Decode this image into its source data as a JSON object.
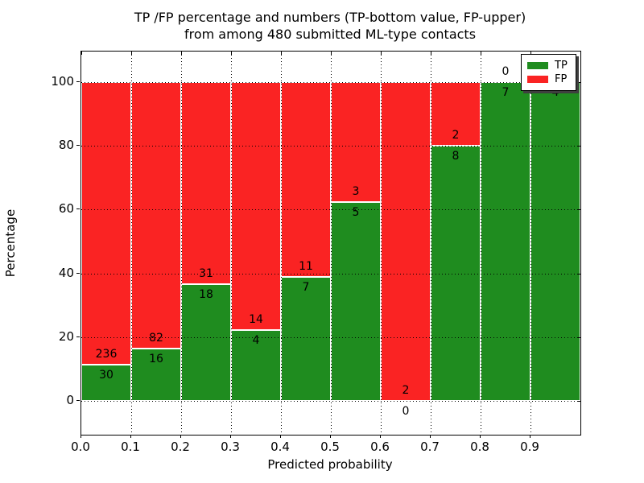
{
  "figure": {
    "title_line1": "TP /FP percentage and numbers (TP-bottom value, FP-upper)",
    "title_line2": "from among 480 submitted ML-type contacts"
  },
  "chart_data": {
    "type": "bar",
    "stacked": true,
    "normalized_to_percent": true,
    "title": "TP /FP percentage and numbers (TP-bottom value, FP-upper)\nfrom among 480 submitted ML-type contacts",
    "xlabel": "Predicted probability",
    "ylabel": "Percentage",
    "total_contacts": 480,
    "bins": {
      "start": 0.0,
      "width": 0.1,
      "count": 10
    },
    "x_tick_labels": [
      "0.0",
      "0.1",
      "0.2",
      "0.3",
      "0.4",
      "0.5",
      "0.6",
      "0.7",
      "0.8",
      "0.9"
    ],
    "y_tick_values": [
      0,
      20,
      40,
      60,
      80,
      100
    ],
    "y_tick_labels": [
      "0",
      "20",
      "40",
      "60",
      "80",
      "100"
    ],
    "xlim": [
      0.0,
      1.0
    ],
    "ylim": [
      -10.6,
      109.6
    ],
    "grid": {
      "enabled": true,
      "style": "dotted",
      "color": "#000000"
    },
    "series": [
      {
        "name": "TP",
        "color": "#1f8c1f",
        "counts": [
          30,
          16,
          18,
          4,
          7,
          5,
          0,
          8,
          7,
          4
        ]
      },
      {
        "name": "FP",
        "color": "#fa2323",
        "counts": [
          236,
          82,
          31,
          14,
          11,
          3,
          2,
          2,
          0,
          0
        ]
      }
    ],
    "tp_percent": [
      11.28,
      16.33,
      36.73,
      22.22,
      38.89,
      62.5,
      0.0,
      80.0,
      100.0,
      100.0
    ],
    "legend": {
      "position": "upper right",
      "entries": [
        {
          "label": "TP",
          "color": "#1f8c1f"
        },
        {
          "label": "FP",
          "color": "#fa2323"
        }
      ]
    }
  }
}
